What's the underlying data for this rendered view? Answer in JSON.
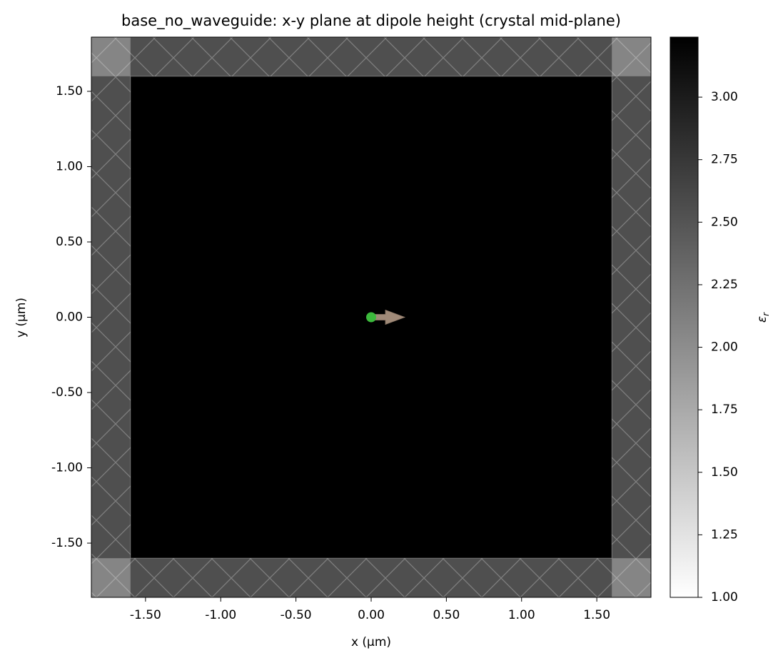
{
  "chart_data": {
    "type": "image",
    "title": "base_no_waveguide: x-y plane at dipole height (crystal mid-plane)",
    "xlabel": "x (µm)",
    "ylabel": "y (µm)",
    "xlim": [
      -1.86,
      1.86
    ],
    "ylim": [
      -1.86,
      1.86
    ],
    "xticks": [
      {
        "value": -1.5,
        "label": "-1.50"
      },
      {
        "value": -1.0,
        "label": "-1.00"
      },
      {
        "value": -0.5,
        "label": "-0.50"
      },
      {
        "value": 0,
        "label": "0.00"
      },
      {
        "value": 0.5,
        "label": "0.50"
      },
      {
        "value": 1.0,
        "label": "1.00"
      },
      {
        "value": 1.5,
        "label": "1.50"
      }
    ],
    "yticks": [
      {
        "value": -1.5,
        "label": "-1.50"
      },
      {
        "value": -1.0,
        "label": "-1.00"
      },
      {
        "value": -0.5,
        "label": "-0.50"
      },
      {
        "value": 0,
        "label": "0.00"
      },
      {
        "value": 0.5,
        "label": "0.50"
      },
      {
        "value": 1.0,
        "label": "1.00"
      },
      {
        "value": 1.5,
        "label": "1.50"
      }
    ],
    "permittivity": 3.24,
    "pml_bounds": [
      -1.6,
      1.6
    ],
    "source": {
      "x": 0,
      "y": 0,
      "color": "#3cb93c",
      "arrow_color": "#a08a78"
    },
    "colorbar": {
      "symbol": "ε",
      "subscript": "r",
      "clim": [
        1.0,
        3.24
      ],
      "ticks": [
        {
          "value": 1.0,
          "label": "1.00"
        },
        {
          "value": 1.25,
          "label": "1.25"
        },
        {
          "value": 1.5,
          "label": "1.50"
        },
        {
          "value": 1.75,
          "label": "1.75"
        },
        {
          "value": 2.0,
          "label": "2.00"
        },
        {
          "value": 2.25,
          "label": "2.25"
        },
        {
          "value": 2.5,
          "label": "2.50"
        },
        {
          "value": 2.75,
          "label": "2.75"
        },
        {
          "value": 3.0,
          "label": "3.00"
        }
      ]
    }
  }
}
